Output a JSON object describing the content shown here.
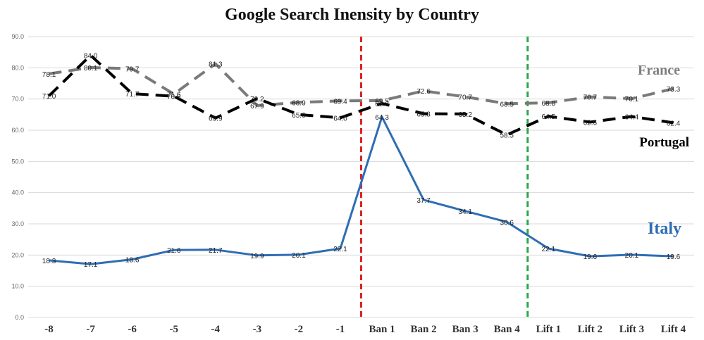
{
  "chart_data": {
    "type": "line",
    "title": "Google Search Inensity by Country",
    "xlabel": "",
    "ylabel": "",
    "ylim": [
      0,
      90
    ],
    "yticks": [
      "0.0",
      "10.0",
      "20.0",
      "30.0",
      "40.0",
      "50.0",
      "60.0",
      "70.0",
      "80.0",
      "90.0"
    ],
    "categories": [
      "-8",
      "-7",
      "-6",
      "-5",
      "-4",
      "-3",
      "-2",
      "-1",
      "Ban 1",
      "Ban 2",
      "Ban 3",
      "Ban 4",
      "Lift 1",
      "Lift 2",
      "Lift 3",
      "Lift 4"
    ],
    "grid": "horizontal",
    "vertical_markers": [
      {
        "between": [
          "-1",
          "Ban 1"
        ],
        "color": "#e02020",
        "style": "dashed"
      },
      {
        "between": [
          "Ban 4",
          "Lift 1"
        ],
        "color": "#2aa84a",
        "style": "dashed"
      }
    ],
    "series": [
      {
        "name": "France",
        "color": "#7a7a7a",
        "label_color": "#7f7f7f",
        "style": "dashed",
        "values": [
          78.1,
          80.1,
          79.7,
          71.6,
          81.3,
          67.9,
          68.9,
          69.4,
          69.5,
          72.6,
          70.7,
          68.5,
          68.8,
          70.7,
          70.1,
          73.3
        ],
        "labels": [
          "78.1",
          "80.1",
          "79.7",
          "71.6",
          "81.3",
          "67.9",
          "68.9",
          "69.4",
          "69.5",
          "72.6",
          "70.7",
          "68.5",
          "68.8",
          "70.7",
          "70.1",
          "73.3"
        ]
      },
      {
        "name": "Portugal",
        "color": "#000000",
        "label_color": "#000000",
        "style": "dashed",
        "values": [
          71.0,
          84.0,
          71.7,
          70.9,
          63.9,
          70.2,
          65.0,
          64.0,
          68.6,
          65.3,
          65.2,
          58.5,
          64.5,
          62.6,
          64.4,
          62.4
        ],
        "labels": [
          "71.0",
          "84.0",
          "71.7",
          "70.9",
          "63.9",
          "70.2",
          "65.0",
          "64.0",
          "68.6",
          "65.3",
          "65.2",
          "58.5",
          "64.5",
          "62.6",
          "64.4",
          "62.4"
        ]
      },
      {
        "name": "Italy",
        "color": "#2e6db4",
        "label_color": "#2e6db4",
        "style": "solid",
        "values": [
          18.3,
          17.1,
          18.6,
          21.6,
          21.7,
          19.9,
          20.1,
          22.1,
          64.3,
          37.7,
          34.1,
          30.6,
          22.1,
          19.6,
          20.1,
          19.6
        ],
        "labels": [
          "18.3",
          "17.1",
          "18.6",
          "21.6",
          "21.7",
          "19.9",
          "20.1",
          "22.1",
          "64.3",
          "37.7",
          "34.1",
          "30.6",
          "22.1",
          "19.6",
          "20.1",
          "19.6"
        ]
      }
    ]
  }
}
